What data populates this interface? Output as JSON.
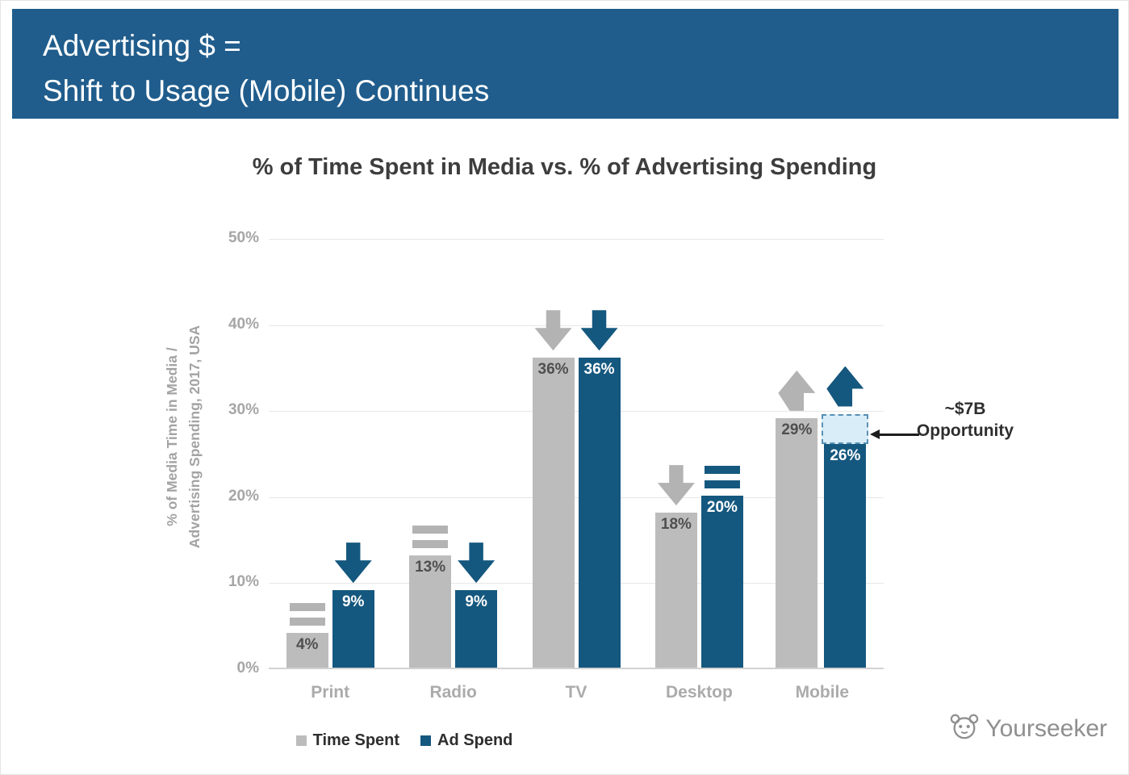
{
  "banner": {
    "line1": "Advertising $ =",
    "line2": "Shift to Usage (Mobile) Continues",
    "background": "#205d8c"
  },
  "chart_data": {
    "type": "bar",
    "title": "% of Time Spent in Media vs. % of Advertising Spending",
    "ylabel_lines": [
      "% of Media Time in Media /",
      "Advertising Spending, 2017, USA"
    ],
    "categories": [
      "Print",
      "Radio",
      "TV",
      "Desktop",
      "Mobile"
    ],
    "series": [
      {
        "name": "Time Spent",
        "color": "#bcbcbc",
        "label_color": "#4f4f4f",
        "arrow_color": "#b3b3b3",
        "values": [
          4,
          13,
          36,
          18,
          29
        ],
        "value_labels": [
          "4%",
          "13%",
          "36%",
          "18%",
          "29%"
        ],
        "trends": [
          "flat",
          "flat",
          "down",
          "down",
          "up"
        ]
      },
      {
        "name": "Ad Spend",
        "color": "#15587f",
        "label_color": "#ffffff",
        "arrow_color": "#15587f",
        "values": [
          9,
          9,
          36,
          20,
          26
        ],
        "value_labels": [
          "9%",
          "9%",
          "36%",
          "20%",
          "26%"
        ],
        "trends": [
          "down",
          "down",
          "down",
          "flat",
          "up"
        ]
      }
    ],
    "ylim": [
      0,
      50
    ],
    "yticks": [
      "0%",
      "10%",
      "20%",
      "30%",
      "40%",
      "50%"
    ],
    "ytick_values": [
      0,
      10,
      20,
      30,
      40,
      50
    ],
    "grid": true,
    "legend_position": "bottom",
    "annotation": {
      "lines": [
        "~$7B",
        "Opportunity"
      ],
      "target_category": "Mobile",
      "target_series": "Ad Spend",
      "box_from_pct": 26,
      "box_to_pct": 29.5,
      "box_fill": "#d9edf8",
      "box_border": "#5590b5"
    }
  },
  "watermark": {
    "text": "Yourseeker"
  }
}
